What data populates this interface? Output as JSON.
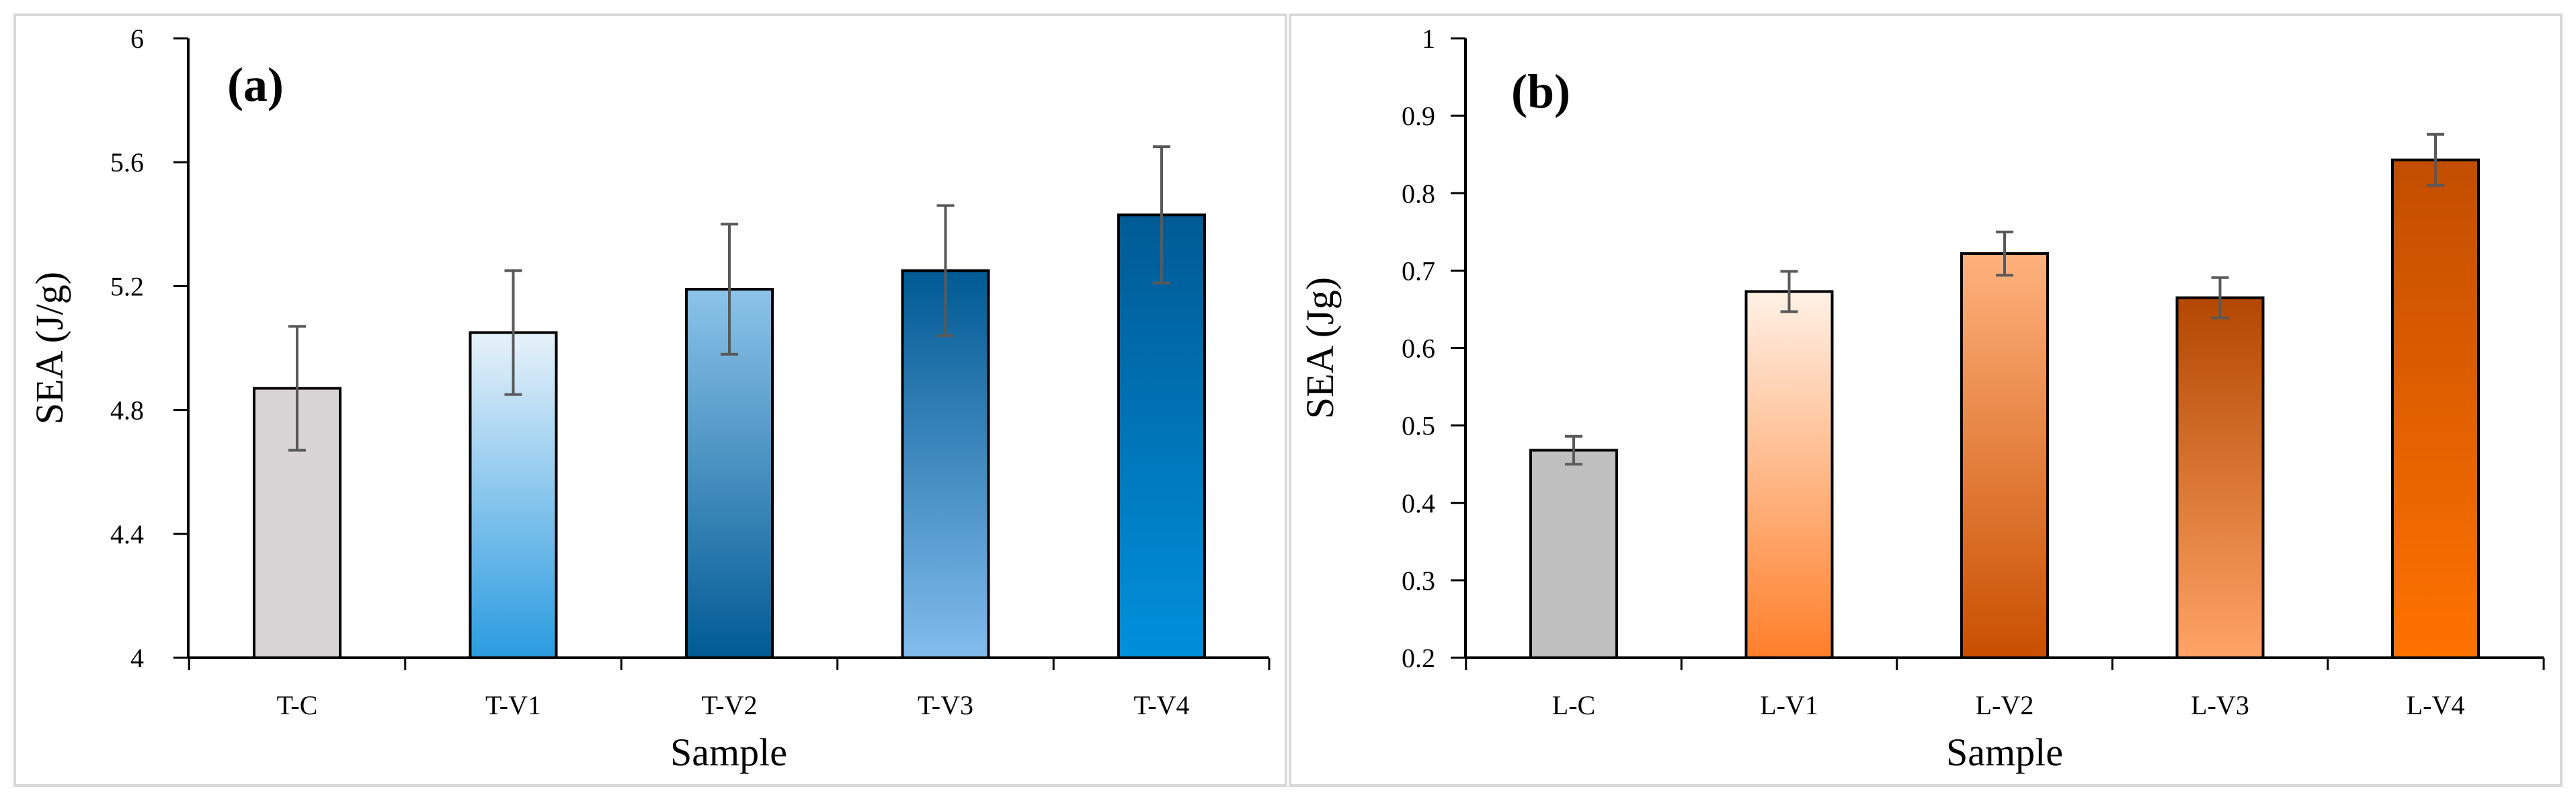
{
  "chart_data": [
    {
      "type": "bar",
      "panel_label": "(a)",
      "title": "",
      "xlabel": "Sample",
      "ylabel": "SEA (J/g)",
      "categories": [
        "T-C",
        "T-V1",
        "T-V2",
        "T-V3",
        "T-V4"
      ],
      "values": [
        4.87,
        5.05,
        5.19,
        5.25,
        5.43
      ],
      "errors": [
        0.2,
        0.2,
        0.21,
        0.21,
        0.22
      ],
      "ylim": [
        4,
        6
      ],
      "yticks": [
        4,
        4.4,
        4.8,
        5.2,
        5.6,
        6
      ],
      "ytick_labels": [
        "4",
        "4.4",
        "4.8",
        "5.2",
        "5.6",
        "6"
      ],
      "grid": false,
      "bar_gradients": [
        {
          "top": "#d9d4d6",
          "bottom": "#d9d4d6"
        },
        {
          "top": "#e8f2fa",
          "bottom": "#2a9be0"
        },
        {
          "top": "#8cc4ea",
          "bottom": "#005a94"
        },
        {
          "top": "#005a94",
          "bottom": "#82bcec"
        },
        {
          "top": "#005a94",
          "bottom": "#0090dc"
        }
      ]
    },
    {
      "type": "bar",
      "panel_label": "(b)",
      "title": "",
      "xlabel": "Sample",
      "ylabel": "SEA (Jg)",
      "categories": [
        "L-C",
        "L-V1",
        "L-V2",
        "L-V3",
        "L-V4"
      ],
      "values": [
        0.468,
        0.673,
        0.722,
        0.665,
        0.843
      ],
      "errors": [
        0.018,
        0.026,
        0.028,
        0.026,
        0.033
      ],
      "ylim": [
        0.2,
        1
      ],
      "yticks": [
        0.2,
        0.3,
        0.4,
        0.5,
        0.6,
        0.7,
        0.8,
        0.9,
        1
      ],
      "ytick_labels": [
        "0.2",
        "0.3",
        "0.4",
        "0.5",
        "0.6",
        "0.7",
        "0.8",
        "0.9",
        "1"
      ],
      "grid": false,
      "bar_gradients": [
        {
          "top": "#bfbfbf",
          "bottom": "#bfbfbf"
        },
        {
          "top": "#fff1e6",
          "bottom": "#ff7f2a"
        },
        {
          "top": "#ffb27d",
          "bottom": "#c94f00"
        },
        {
          "top": "#b24700",
          "bottom": "#ffa467"
        },
        {
          "top": "#c24d00",
          "bottom": "#ff7200"
        }
      ]
    }
  ]
}
